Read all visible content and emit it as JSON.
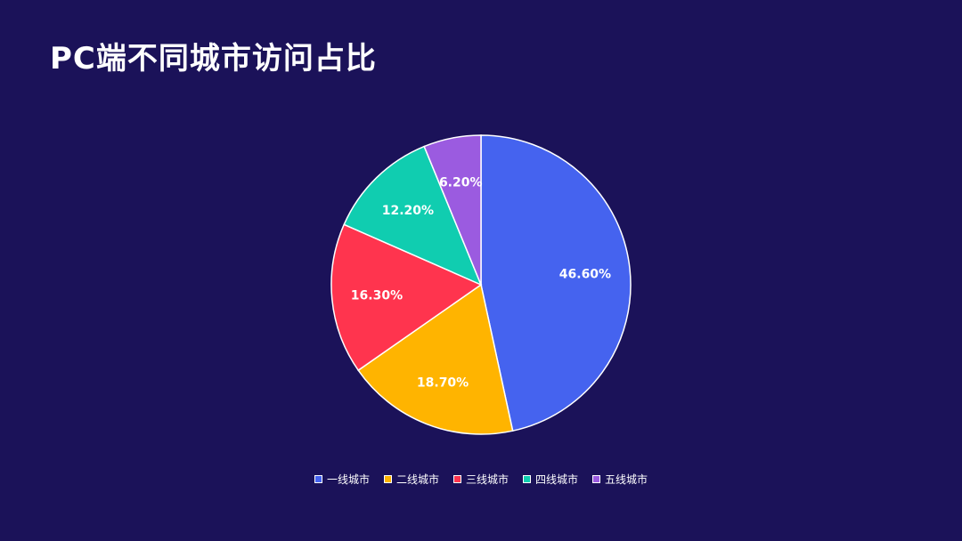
{
  "title": "PC端不同城市访问占比",
  "chart_data": {
    "type": "pie",
    "title": "PC端不同城市访问占比",
    "start_angle_deg": 0,
    "direction": "clockwise",
    "legend_position": "bottom-center",
    "slices": [
      {
        "name": "一线城市",
        "value": 46.6,
        "label": "46.60%",
        "color": "#4563ef"
      },
      {
        "name": "二线城市",
        "value": 18.7,
        "label": "18.70%",
        "color": "#ffb400"
      },
      {
        "name": "三线城市",
        "value": 16.3,
        "label": "16.30%",
        "color": "#ff344e"
      },
      {
        "name": "四线城市",
        "value": 12.2,
        "label": "12.20%",
        "color": "#10cdb0"
      },
      {
        "name": "五线城市",
        "value": 6.2,
        "label": "6.20%",
        "color": "#9b5be0"
      }
    ]
  }
}
